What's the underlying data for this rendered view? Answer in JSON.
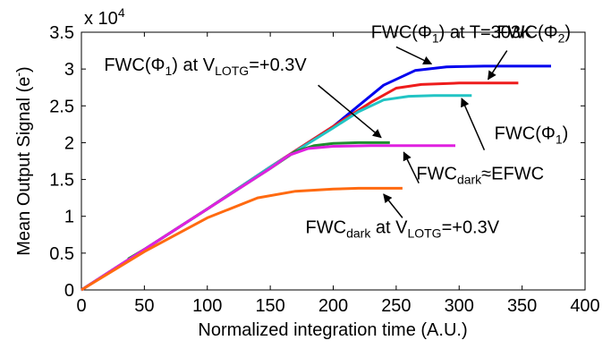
{
  "chart_data": {
    "type": "line",
    "xlabel": "Normalized integration time (A.U.)",
    "ylabel": "Mean Output  Signal (e-)",
    "ylabel_parts": [
      "Mean Output  Signal (e",
      "-",
      ")"
    ],
    "y_multiplier": "x 10",
    "y_multiplier_exp": "4",
    "xlim": [
      0,
      400
    ],
    "ylim": [
      0,
      3.5
    ],
    "xticks": [
      0,
      50,
      100,
      150,
      200,
      250,
      300,
      350,
      400
    ],
    "yticks": [
      0,
      0.5,
      1,
      1.5,
      2,
      2.5,
      3,
      3.5
    ],
    "grid": false,
    "series": [
      {
        "color": "#0000ee",
        "x": [
          0,
          50,
          100,
          150,
          200,
          240,
          265,
          290,
          320,
          350,
          373
        ],
        "y": [
          0,
          0.55,
          1.1,
          1.67,
          2.22,
          2.78,
          2.98,
          3.03,
          3.04,
          3.04,
          3.04
        ]
      },
      {
        "color": "#ee1c1c",
        "x": [
          0,
          50,
          100,
          150,
          200,
          230,
          250,
          270,
          300,
          330,
          347
        ],
        "y": [
          0,
          0.55,
          1.1,
          1.67,
          2.22,
          2.55,
          2.74,
          2.79,
          2.81,
          2.81,
          2.81
        ]
      },
      {
        "color": "#22c4c4",
        "x": [
          0,
          50,
          100,
          150,
          200,
          220,
          240,
          260,
          280,
          310
        ],
        "y": [
          0,
          0.55,
          1.1,
          1.67,
          2.2,
          2.42,
          2.58,
          2.63,
          2.64,
          2.64
        ]
      },
      {
        "color": "#1e8c2e",
        "x": [
          37,
          50,
          100,
          150,
          170,
          185,
          200,
          220,
          245
        ],
        "y": [
          0.42,
          0.55,
          1.1,
          1.65,
          1.88,
          1.96,
          1.99,
          2.0,
          2.0
        ]
      },
      {
        "color": "#e020e0",
        "x": [
          0,
          50,
          100,
          150,
          165,
          180,
          200,
          230,
          260,
          297
        ],
        "y": [
          0,
          0.55,
          1.1,
          1.65,
          1.83,
          1.92,
          1.95,
          1.96,
          1.96,
          1.96
        ]
      },
      {
        "color": "#ff6a10",
        "x": [
          0,
          50,
          100,
          140,
          170,
          200,
          220,
          240,
          255
        ],
        "y": [
          0,
          0.52,
          0.98,
          1.25,
          1.34,
          1.37,
          1.38,
          1.38,
          1.38
        ]
      }
    ],
    "annotations": [
      {
        "id": "fwc-phi1-303k",
        "parts": [
          {
            "t": "FWC(Φ"
          },
          {
            "t": "1",
            "sub": true
          },
          {
            "t": ") at T=303K"
          }
        ],
        "x": 230,
        "y": 3.42
      },
      {
        "id": "fwc-phi2",
        "parts": [
          {
            "t": "FWC(Φ"
          },
          {
            "t": "2",
            "sub": true
          },
          {
            "t": ")"
          }
        ],
        "x": 330,
        "y": 3.42
      },
      {
        "id": "fwc-phi1-vlotg",
        "parts": [
          {
            "t": "FWC(Φ"
          },
          {
            "t": "1",
            "sub": true
          },
          {
            "t": ") at V"
          },
          {
            "t": "LOTG",
            "sub": true
          },
          {
            "t": "=+0.3V"
          }
        ],
        "x": 18,
        "y": 2.98
      },
      {
        "id": "fwc-phi1",
        "parts": [
          {
            "t": "FWC(Φ"
          },
          {
            "t": "1",
            "sub": true
          },
          {
            "t": ")"
          }
        ],
        "x": 328,
        "y": 2.05
      },
      {
        "id": "fwc-dark-efwc",
        "parts": [
          {
            "t": "FWC"
          },
          {
            "t": "dark",
            "sub": true
          },
          {
            "t": "≈EFWC"
          }
        ],
        "x": 266,
        "y": 1.5
      },
      {
        "id": "fwc-dark-vlotg",
        "parts": [
          {
            "t": "FWC"
          },
          {
            "t": "dark",
            "sub": true
          },
          {
            "t": " at V"
          },
          {
            "t": "LOTG",
            "sub": true
          },
          {
            "t": "=+0.3V"
          }
        ],
        "x": 178,
        "y": 0.77
      }
    ],
    "arrows": [
      {
        "from": [
          250,
          3.3
        ],
        "to": [
          278,
          3.07
        ]
      },
      {
        "from": [
          338,
          3.25
        ],
        "to": [
          323,
          2.86
        ]
      },
      {
        "from": [
          188,
          2.78
        ],
        "to": [
          238,
          2.07
        ]
      },
      {
        "from": [
          320,
          1.9
        ],
        "to": [
          302,
          2.6
        ]
      },
      {
        "from": [
          268,
          1.45
        ],
        "to": [
          256,
          1.87
        ]
      },
      {
        "from": [
          255,
          0.98
        ],
        "to": [
          240,
          1.3
        ]
      }
    ]
  }
}
